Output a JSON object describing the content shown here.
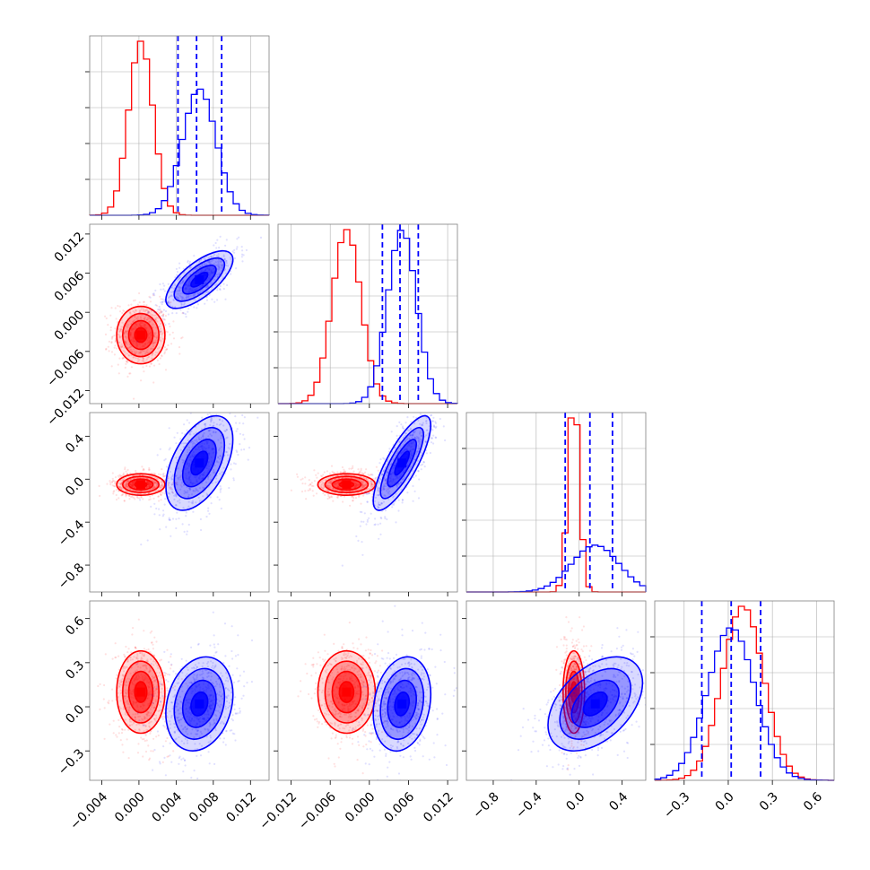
{
  "chart_data": {
    "type": "corner",
    "parameters": 4,
    "grid": true,
    "colors": {
      "series_a": "#ff0000",
      "series_b": "#0000ff"
    },
    "ranges": [
      [
        -0.0053,
        0.014
      ],
      [
        -0.014,
        0.0135
      ],
      [
        -1.05,
        0.62
      ],
      [
        -0.5,
        0.72
      ]
    ],
    "ticks": [
      {
        "values": [
          -0.004,
          0.0,
          0.004,
          0.008,
          0.012
        ],
        "labels": [
          "−0.004",
          "0.000",
          "0.004",
          "0.008",
          "0.012"
        ]
      },
      {
        "values": [
          -0.012,
          -0.006,
          0.0,
          0.006,
          0.012
        ],
        "labels": [
          "−0.012",
          "−0.006",
          "0.000",
          "0.006",
          "0.012"
        ]
      },
      {
        "values": [
          -0.8,
          -0.4,
          0.0,
          0.4
        ],
        "labels": [
          "−0.8",
          "−0.4",
          "0.0",
          "0.4"
        ]
      },
      {
        "values": [
          -0.3,
          0.0,
          0.3,
          0.6
        ],
        "labels": [
          "−0.3",
          "0.0",
          "0.3",
          "0.6"
        ]
      }
    ],
    "series": [
      {
        "mean": [
          0.0002,
          -0.0035,
          -0.05,
          0.1
        ],
        "std": [
          0.0013,
          0.0022,
          0.05,
          0.14
        ]
      },
      {
        "mean": [
          0.0065,
          0.005,
          0.15,
          0.02
        ],
        "std": [
          0.0018,
          0.0022,
          0.22,
          0.16
        ]
      }
    ],
    "correlations_b": {
      "0-1": 0.7,
      "0-2": 0.5,
      "1-2": 0.8,
      "0-3": 0.2,
      "1-3": 0.2,
      "2-3": 0.45
    },
    "quantile_lines_b": [
      [
        0.0042,
        0.0062,
        0.0089
      ],
      [
        0.002,
        0.0047,
        0.0075
      ],
      [
        -0.13,
        0.1,
        0.31
      ],
      [
        -0.18,
        0.02,
        0.22
      ]
    ]
  }
}
